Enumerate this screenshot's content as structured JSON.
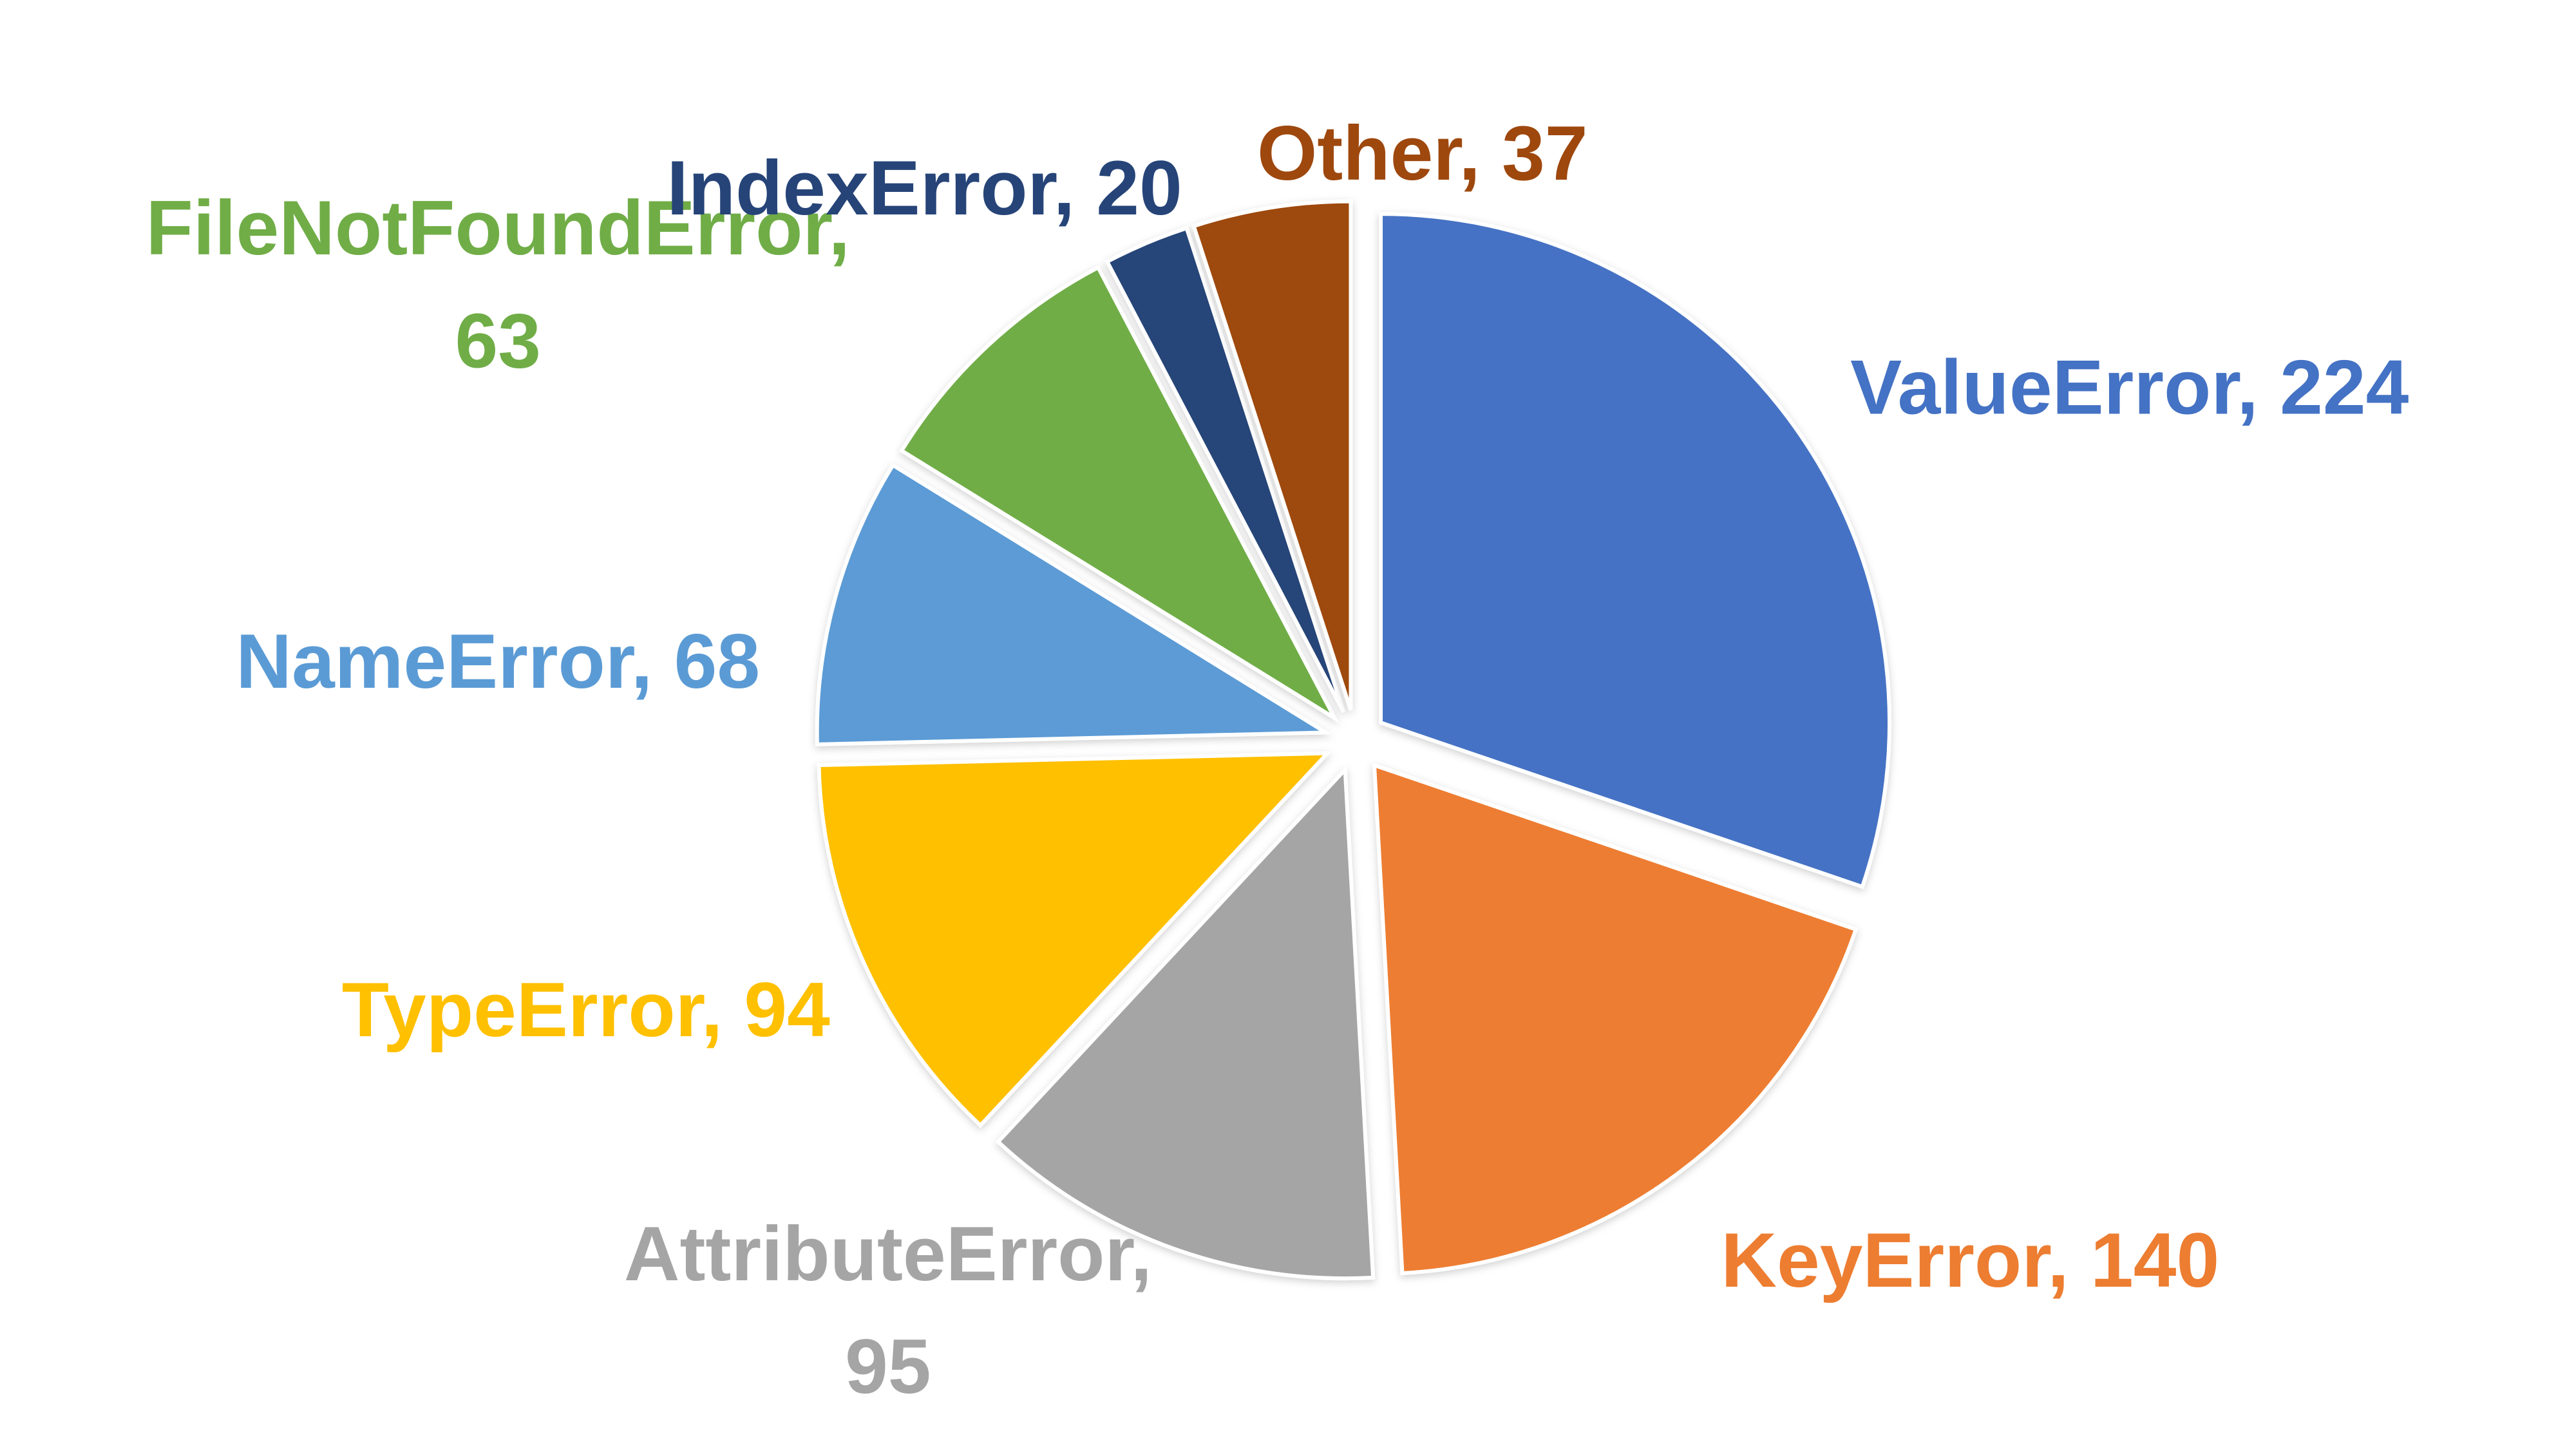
{
  "chart_data": {
    "type": "pie",
    "title": "",
    "legend": "none",
    "start": "12 o'clock",
    "direction": "clockwise",
    "exploded": true,
    "slices": [
      {
        "label": "ValueError",
        "value": 224,
        "color": "#4472C4",
        "label_text": [
          "ValueError, 224"
        ]
      },
      {
        "label": "KeyError",
        "value": 140,
        "color": "#ED7D31",
        "label_text": [
          "KeyError, 140"
        ]
      },
      {
        "label": "AttributeError",
        "value": 95,
        "color": "#A5A5A5",
        "label_text": [
          "AttributeError,",
          "95"
        ]
      },
      {
        "label": "TypeError",
        "value": 94,
        "color": "#FFC000",
        "label_text": [
          "TypeError, 94"
        ]
      },
      {
        "label": "NameError",
        "value": 68,
        "color": "#5B9BD5",
        "label_text": [
          "NameError, 68"
        ]
      },
      {
        "label": "FileNotFoundError",
        "value": 63,
        "color": "#70AD47",
        "label_text": [
          "FileNotFoundError,",
          "63"
        ]
      },
      {
        "label": "IndexError",
        "value": 20,
        "color": "#264478",
        "label_text": [
          "IndexError, 20"
        ]
      },
      {
        "label": "Other",
        "value": 37,
        "color": "#9E480E",
        "label_text": [
          "Other, 37"
        ]
      }
    ]
  }
}
